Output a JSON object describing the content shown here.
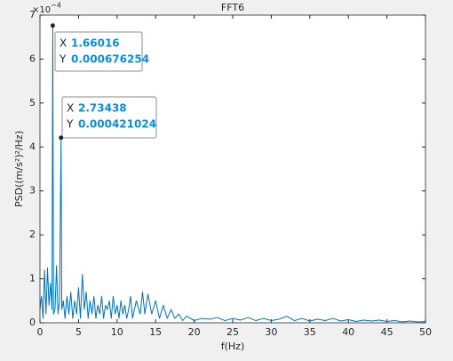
{
  "chart_data": {
    "type": "line",
    "title": "FFT6",
    "xlabel": "f(Hz)",
    "ylabel": "PSD((m/s²)²/Hz)",
    "y_multiplier_base": "×10",
    "y_multiplier_exp": "−4",
    "xlim": [
      0,
      50
    ],
    "xticks": [
      0,
      5,
      10,
      15,
      20,
      25,
      30,
      35,
      40,
      45,
      50
    ],
    "ylim": [
      0,
      0.0007
    ],
    "yticks": [
      {
        "value": 0,
        "label": "0"
      },
      {
        "value": 0.0001,
        "label": "1"
      },
      {
        "value": 0.0002,
        "label": "2"
      },
      {
        "value": 0.0003,
        "label": "3"
      },
      {
        "value": 0.0004,
        "label": "4"
      },
      {
        "value": 0.0005,
        "label": "5"
      },
      {
        "value": 0.0006,
        "label": "6"
      },
      {
        "value": 0.0007,
        "label": "7"
      }
    ],
    "grid": false,
    "series": [
      {
        "color": "#0072bd",
        "x": [
          0,
          0.2,
          0.39,
          0.59,
          0.78,
          0.98,
          1.17,
          1.37,
          1.56,
          1.66016,
          1.76,
          1.95,
          2.15,
          2.34,
          2.54,
          2.73438,
          2.83,
          3.03,
          3.25,
          3.5,
          3.75,
          4,
          4.25,
          4.5,
          4.75,
          5,
          5.25,
          5.5,
          5.75,
          6,
          6.25,
          6.5,
          6.75,
          7,
          7.25,
          7.5,
          7.75,
          8,
          8.25,
          8.5,
          8.75,
          9,
          9.25,
          9.5,
          9.75,
          10,
          10.25,
          10.5,
          10.75,
          11,
          11.25,
          11.5,
          11.75,
          12,
          12.5,
          13,
          13.3,
          13.6,
          14,
          14.5,
          15,
          15.5,
          16,
          16.5,
          17,
          17.5,
          18,
          18.5,
          19,
          20,
          21,
          22,
          23,
          24,
          25,
          26,
          27,
          28,
          29,
          30,
          31,
          32,
          33,
          34,
          35,
          36,
          37,
          38,
          39,
          40,
          41,
          42,
          43,
          44,
          45,
          46,
          47,
          48,
          49,
          50
        ],
        "values": [
          3e-05,
          6e-05,
          1e-05,
          0.00012,
          2e-05,
          0.000125,
          4e-05,
          9e-05,
          3e-05,
          0.000676254,
          2e-05,
          3e-05,
          0.00013,
          2e-05,
          5e-05,
          0.000421024,
          3e-05,
          5e-05,
          1e-05,
          6e-05,
          2e-05,
          7e-05,
          1e-05,
          5e-05,
          2e-05,
          8e-05,
          1e-05,
          0.00011,
          3e-05,
          7e-05,
          1e-05,
          5e-05,
          2e-05,
          6e-05,
          1e-05,
          4e-05,
          2e-05,
          6e-05,
          1e-05,
          4e-05,
          3e-05,
          5e-05,
          1e-05,
          6e-05,
          2e-05,
          4e-05,
          1e-05,
          5e-05,
          2e-05,
          4e-05,
          1e-05,
          3e-05,
          6e-05,
          1e-05,
          5e-05,
          2e-05,
          7e-05,
          2e-05,
          6.5e-05,
          2e-05,
          5e-05,
          1e-05,
          4e-05,
          1e-05,
          3e-05,
          1e-05,
          2e-05,
          5e-06,
          1.5e-05,
          5e-06,
          1e-05,
          8e-06,
          1.2e-05,
          5e-06,
          1e-05,
          6e-06,
          1.2e-05,
          5e-06,
          1e-05,
          5e-06,
          8e-06,
          1.5e-05,
          5e-06,
          1e-05,
          4e-06,
          8e-06,
          5e-06,
          1e-05,
          4e-06,
          7e-06,
          3e-06,
          6e-06,
          4e-06,
          6e-06,
          3e-06,
          5e-06,
          2e-06,
          4e-06,
          2e-06,
          3e-06
        ]
      }
    ],
    "datatip_labels": [
      "X",
      "Y"
    ],
    "annotations": [
      {
        "x": 1.66016,
        "y": 0.000676254
      },
      {
        "x": 2.73438,
        "y": 0.000421024
      }
    ]
  }
}
